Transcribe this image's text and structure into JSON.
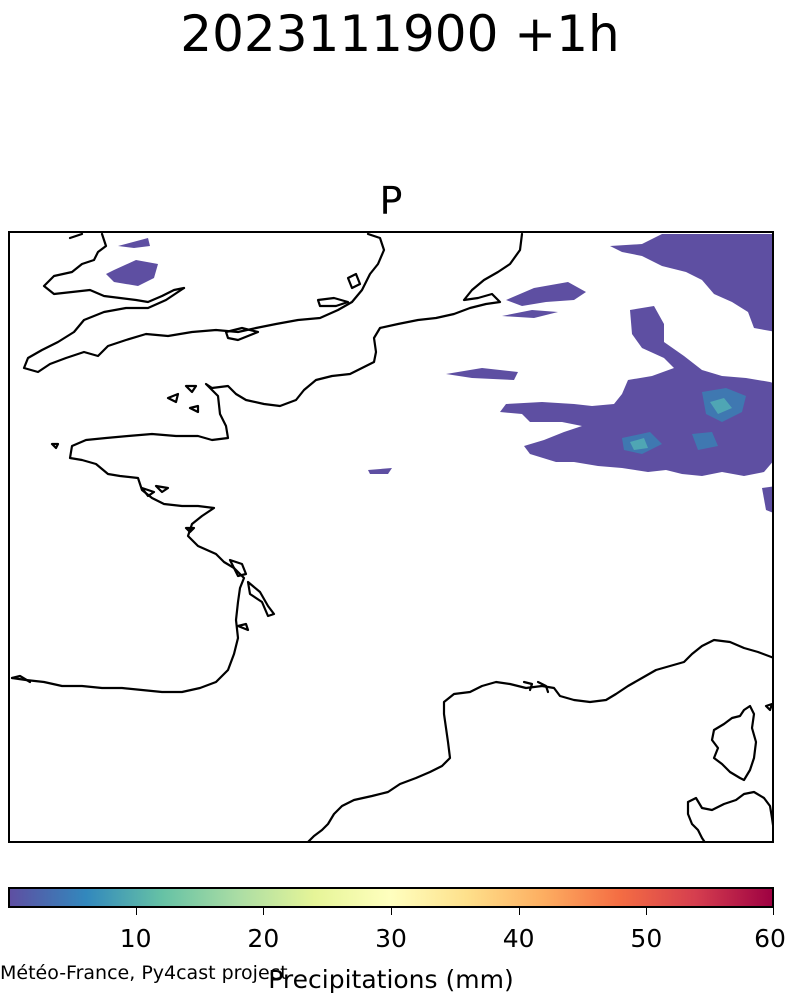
{
  "figure": {
    "suptitle": "2023111900 +1h",
    "panel_title": "P",
    "credit": "Météo-France, Py4cast project"
  },
  "map": {
    "field": "precipitation",
    "coastline_color": "#000000",
    "precip_colors": {
      "light": "#5e4fa2",
      "moderate": "#3f78b1",
      "heavier": "#4fa6b4"
    }
  },
  "colorbar": {
    "label": "Precipitations (mm)",
    "min": 0,
    "max": 60,
    "colormap": "Spectral_r",
    "colors": [
      "#5e4fa2",
      "#3288bd",
      "#66c2a5",
      "#abdda4",
      "#e6f598",
      "#ffffbf",
      "#fee08b",
      "#fdae61",
      "#f46d43",
      "#d53e4f",
      "#9e0142"
    ],
    "ticks": [
      {
        "value": 10,
        "label": "10"
      },
      {
        "value": 20,
        "label": "20"
      },
      {
        "value": 30,
        "label": "30"
      },
      {
        "value": 40,
        "label": "40"
      },
      {
        "value": 50,
        "label": "50"
      },
      {
        "value": 60,
        "label": "60"
      }
    ]
  }
}
